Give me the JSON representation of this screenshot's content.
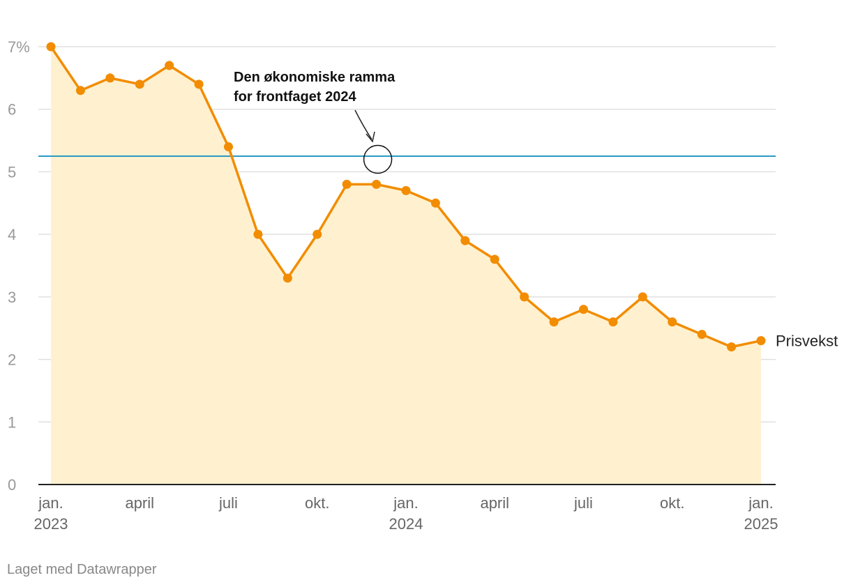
{
  "chart_data": {
    "type": "area",
    "title": "",
    "xlabel": "",
    "ylabel": "",
    "ylim": [
      0,
      7
    ],
    "y_ticks": [
      0,
      1,
      2,
      3,
      4,
      5,
      6,
      7
    ],
    "y_tick_labels": [
      "0",
      "1",
      "2",
      "3",
      "4",
      "5",
      "6",
      "7%"
    ],
    "x": [
      "2023-01",
      "2023-02",
      "2023-03",
      "2023-04",
      "2023-05",
      "2023-06",
      "2023-07",
      "2023-08",
      "2023-09",
      "2023-10",
      "2023-11",
      "2023-12",
      "2024-01",
      "2024-02",
      "2024-03",
      "2024-04",
      "2024-05",
      "2024-06",
      "2024-07",
      "2024-08",
      "2024-09",
      "2024-10",
      "2024-11",
      "2024-12",
      "2025-01"
    ],
    "x_ticks": [
      {
        "x": "2023-01",
        "lines": [
          "jan.",
          "2023"
        ]
      },
      {
        "x": "2023-04",
        "lines": [
          "april"
        ]
      },
      {
        "x": "2023-07",
        "lines": [
          "juli"
        ]
      },
      {
        "x": "2023-10",
        "lines": [
          "okt."
        ]
      },
      {
        "x": "2024-01",
        "lines": [
          "jan.",
          "2024"
        ]
      },
      {
        "x": "2024-04",
        "lines": [
          "april"
        ]
      },
      {
        "x": "2024-07",
        "lines": [
          "juli"
        ]
      },
      {
        "x": "2024-10",
        "lines": [
          "okt."
        ]
      },
      {
        "x": "2025-01",
        "lines": [
          "jan.",
          "2025"
        ]
      }
    ],
    "series": [
      {
        "name": "Prisvekst",
        "color": "#f28c00",
        "fill_color": "#fff1cf",
        "values": [
          7.0,
          6.3,
          6.5,
          6.4,
          6.7,
          6.4,
          5.4,
          4.0,
          3.3,
          4.0,
          4.8,
          4.8,
          4.7,
          4.5,
          3.9,
          3.6,
          3.0,
          2.6,
          2.8,
          2.6,
          3.0,
          2.6,
          2.4,
          2.2,
          2.3
        ]
      }
    ],
    "reference_line": {
      "value": 5.25,
      "color": "#2a9bc2"
    },
    "annotation": {
      "lines": [
        "Den økonomiske ramma",
        "for frontfaget 2024"
      ],
      "target_x": "2023-12",
      "target_y": 5.2
    },
    "grid": true,
    "legend": "none"
  },
  "footer": {
    "credit": "Laget med Datawrapper"
  }
}
